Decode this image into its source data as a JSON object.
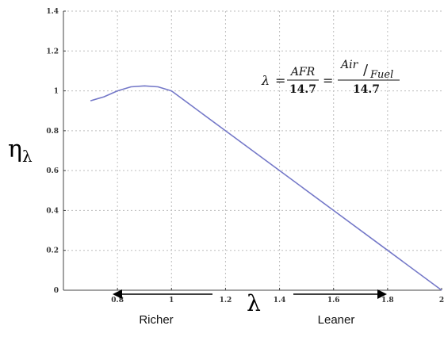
{
  "chart_data": {
    "type": "line",
    "title": "",
    "xlabel": "λ",
    "ylabel": "η",
    "ylabel_sub": "λ",
    "xlim": [
      0.6,
      2.0
    ],
    "ylim": [
      0,
      1.4
    ],
    "grid": true,
    "xticks": [
      0.8,
      1.0,
      1.2,
      1.4,
      1.6,
      1.8,
      2.0
    ],
    "xtick_labels": [
      "0.8",
      "1",
      "1.2",
      "1.4",
      "1.6",
      "1.8",
      "2"
    ],
    "yticks": [
      0,
      0.2,
      0.4,
      0.6,
      0.8,
      1.0,
      1.2,
      1.4
    ],
    "ytick_labels": [
      "0",
      "0.2",
      "0.4",
      "0.6",
      "0.8",
      "1",
      "1.2",
      "1.4"
    ],
    "series": [
      {
        "color": "#7478c8",
        "x": [
          0.7,
          0.75,
          0.8,
          0.85,
          0.9,
          0.95,
          1.0,
          1.2,
          1.4,
          1.6,
          1.8,
          2.0
        ],
        "y": [
          0.95,
          0.97,
          1.0,
          1.02,
          1.025,
          1.02,
          1.0,
          0.8,
          0.6,
          0.4,
          0.2,
          0.0
        ]
      }
    ],
    "annotations": {
      "richer": "Richer",
      "leaner": "Leaner",
      "equation": {
        "lhs": "λ",
        "eq": "=",
        "afr": "AFR",
        "denominator": "14.7",
        "air": "Air",
        "fuel": "Fuel",
        "slash": "/"
      }
    }
  }
}
